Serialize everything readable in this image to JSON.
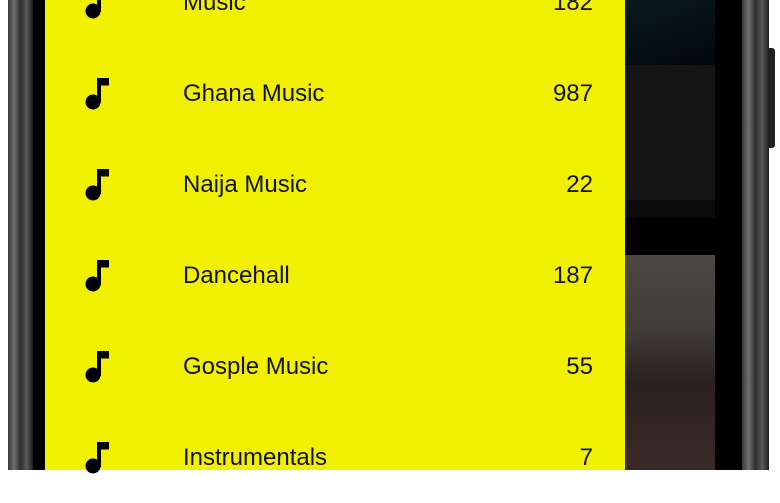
{
  "drawer": {
    "background_color": "#f0f000",
    "items": [
      {
        "label": "Music",
        "count": "182",
        "icon": "music-note-icon"
      },
      {
        "label": "Ghana Music",
        "count": "987",
        "icon": "music-note-icon"
      },
      {
        "label": "Naija Music",
        "count": "22",
        "icon": "music-note-icon"
      },
      {
        "label": "Dancehall",
        "count": "187",
        "icon": "music-note-icon"
      },
      {
        "label": "Gosple Music",
        "count": "55",
        "icon": "music-note-icon"
      },
      {
        "label": "Instrumentals",
        "count": "7",
        "icon": "music-note-icon"
      }
    ]
  }
}
